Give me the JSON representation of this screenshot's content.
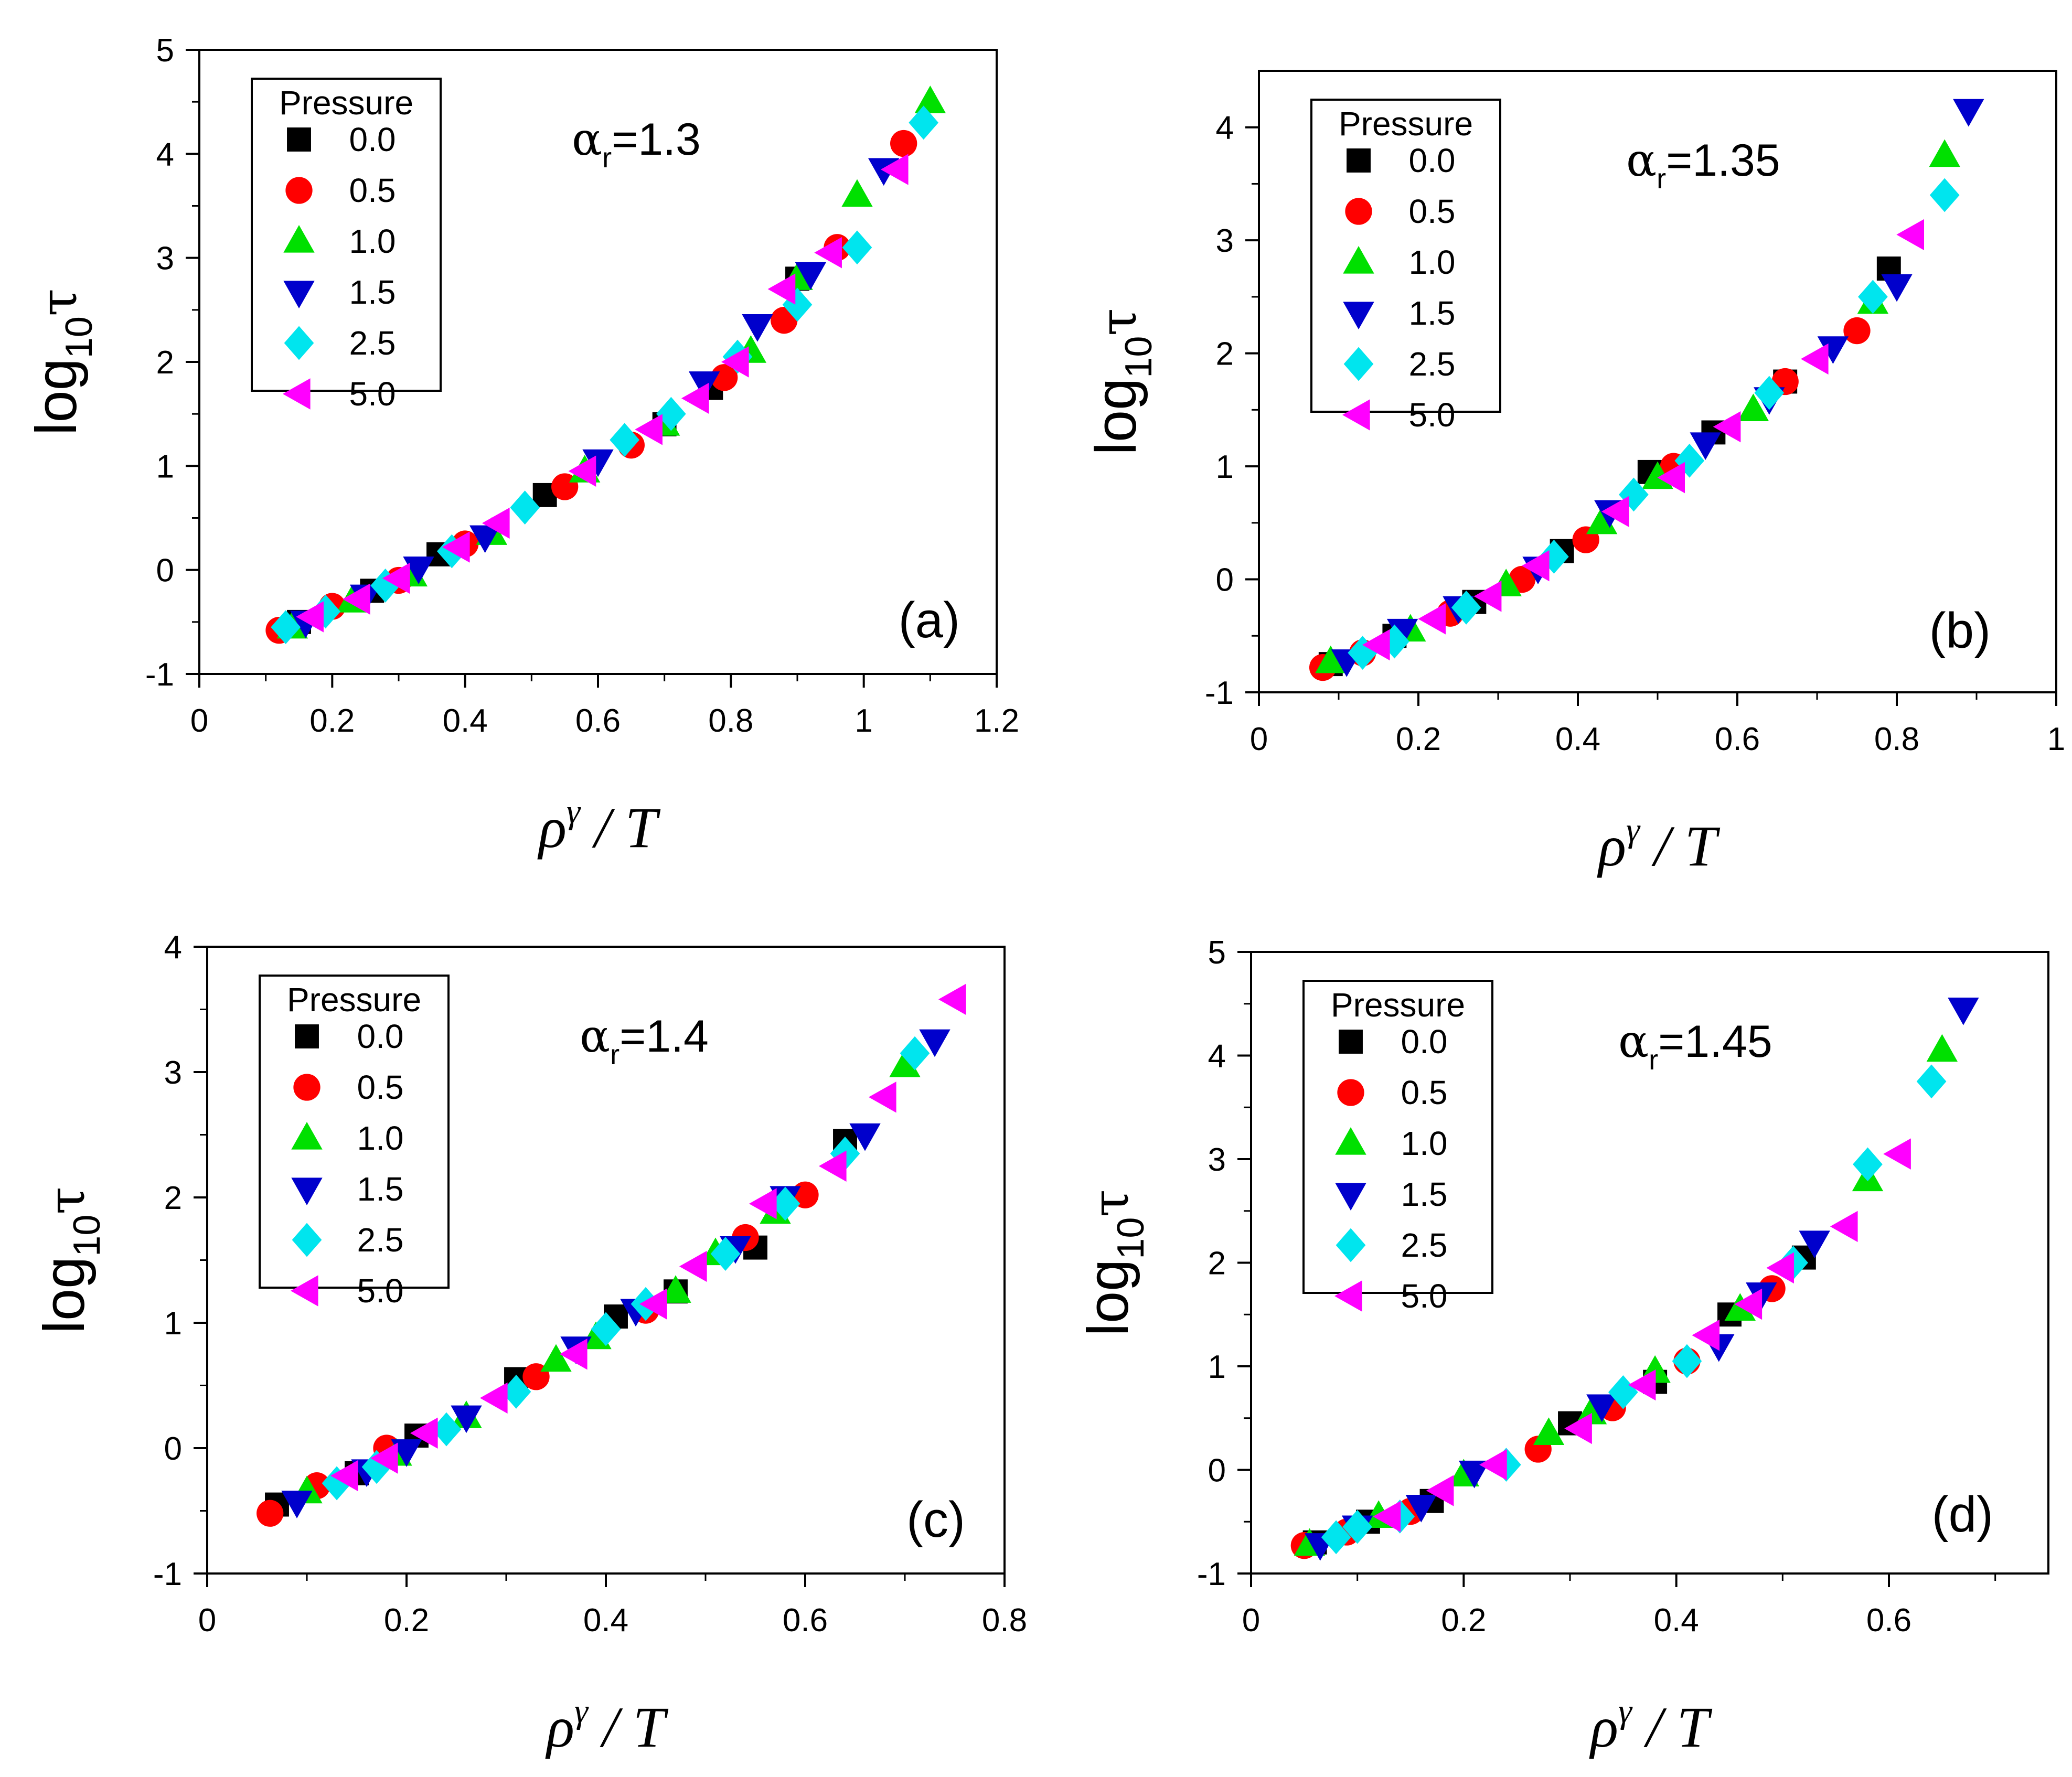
{
  "figure_title": "",
  "chart_data": [
    {
      "type": "scatter",
      "panel_label": "(a)",
      "annotation": {
        "symbol": "α",
        "subscript": "r",
        "value": "=1.3"
      },
      "xlabel": {
        "base": "ρ",
        "sup": "γ",
        "tail": " / T"
      },
      "ylabel": {
        "base": "log",
        "sub": "10",
        "tail": "τ"
      },
      "xlim": [
        0,
        1.2
      ],
      "ylim": [
        -1,
        5
      ],
      "xticks": [
        0,
        0.2,
        0.4,
        0.6,
        0.8,
        1,
        1.2
      ],
      "xtick_labels": [
        "0",
        "0.2",
        "0.4",
        "0.6",
        "0.8",
        "1",
        "1.2"
      ],
      "yticks": [
        -1,
        0,
        1,
        2,
        3,
        4,
        5
      ],
      "ytick_labels": [
        "-1",
        "0",
        "1",
        "2",
        "3",
        "4",
        "5"
      ],
      "legend_title": "Pressure",
      "legend_position": "top-left",
      "series": [
        {
          "name": "0.0",
          "marker": "square",
          "color": "#000000",
          "x": [
            0.15,
            0.26,
            0.36,
            0.52,
            0.7,
            0.77,
            0.9
          ],
          "y": [
            -0.5,
            -0.2,
            0.15,
            0.72,
            1.4,
            1.75,
            2.8
          ]
        },
        {
          "name": "0.5",
          "marker": "circle",
          "color": "#ff0000",
          "x": [
            0.12,
            0.2,
            0.3,
            0.4,
            0.55,
            0.65,
            0.79,
            0.88,
            0.96,
            1.06
          ],
          "y": [
            -0.58,
            -0.35,
            -0.1,
            0.25,
            0.8,
            1.2,
            1.85,
            2.4,
            3.1,
            4.1
          ]
        },
        {
          "name": "1.0",
          "marker": "triangle-up",
          "color": "#00e000",
          "x": [
            0.14,
            0.23,
            0.32,
            0.44,
            0.58,
            0.7,
            0.83,
            0.9,
            0.99,
            1.1
          ],
          "y": [
            -0.55,
            -0.3,
            -0.05,
            0.35,
            0.95,
            1.4,
            2.1,
            2.8,
            3.6,
            4.5
          ]
        },
        {
          "name": "1.5",
          "marker": "triangle-down",
          "color": "#0000cc",
          "x": [
            0.16,
            0.25,
            0.33,
            0.43,
            0.6,
            0.76,
            0.84,
            0.92,
            1.03
          ],
          "y": [
            -0.5,
            -0.25,
            0.02,
            0.32,
            1.05,
            1.8,
            2.35,
            2.85,
            3.85
          ]
        },
        {
          "name": "2.5",
          "marker": "diamond",
          "color": "#00e5ee",
          "x": [
            0.13,
            0.19,
            0.28,
            0.38,
            0.49,
            0.64,
            0.71,
            0.81,
            0.9,
            0.99,
            1.09
          ],
          "y": [
            -0.55,
            -0.4,
            -0.15,
            0.18,
            0.6,
            1.25,
            1.5,
            2.05,
            2.55,
            3.1,
            4.3
          ]
        },
        {
          "name": "5.0",
          "marker": "triangle-left",
          "color": "#ff00ff",
          "x": [
            0.17,
            0.24,
            0.3,
            0.39,
            0.45,
            0.58,
            0.68,
            0.75,
            0.81,
            0.88,
            0.95,
            1.05
          ],
          "y": [
            -0.45,
            -0.28,
            -0.08,
            0.22,
            0.45,
            0.95,
            1.35,
            1.65,
            2.0,
            2.7,
            3.05,
            3.85
          ]
        }
      ]
    },
    {
      "type": "scatter",
      "panel_label": "(b)",
      "annotation": {
        "symbol": "α",
        "subscript": "r",
        "value": "=1.35"
      },
      "xlabel": {
        "base": "ρ",
        "sup": "γ",
        "tail": " / T"
      },
      "ylabel": {
        "base": "log",
        "sub": "10",
        "tail": "τ"
      },
      "xlim": [
        0,
        1
      ],
      "ylim": [
        -1,
        4.5
      ],
      "xticks": [
        0,
        0.2,
        0.4,
        0.6,
        0.8,
        1
      ],
      "xtick_labels": [
        "0",
        "0.2",
        "0.4",
        "0.6",
        "0.8",
        "1"
      ],
      "yticks": [
        -1,
        0,
        1,
        2,
        3,
        4
      ],
      "ytick_labels": [
        "-1",
        "0",
        "1",
        "2",
        "3",
        "4"
      ],
      "legend_title": "Pressure",
      "legend_position": "top-left",
      "series": [
        {
          "name": "0.0",
          "marker": "square",
          "color": "#000000",
          "x": [
            0.09,
            0.17,
            0.27,
            0.38,
            0.49,
            0.57,
            0.66,
            0.79
          ],
          "y": [
            -0.75,
            -0.5,
            -0.2,
            0.25,
            0.95,
            1.3,
            1.75,
            2.75
          ]
        },
        {
          "name": "0.5",
          "marker": "circle",
          "color": "#ff0000",
          "x": [
            0.08,
            0.13,
            0.24,
            0.33,
            0.41,
            0.52,
            0.66,
            0.75
          ],
          "y": [
            -0.78,
            -0.65,
            -0.3,
            0.0,
            0.35,
            1.0,
            1.75,
            2.2
          ]
        },
        {
          "name": "1.0",
          "marker": "triangle-up",
          "color": "#00e000",
          "x": [
            0.09,
            0.19,
            0.31,
            0.43,
            0.5,
            0.62,
            0.77,
            0.86
          ],
          "y": [
            -0.73,
            -0.45,
            -0.05,
            0.5,
            0.9,
            1.5,
            2.45,
            3.75
          ]
        },
        {
          "name": "1.5",
          "marker": "triangle-down",
          "color": "#0000cc",
          "x": [
            0.11,
            0.18,
            0.25,
            0.35,
            0.44,
            0.56,
            0.64,
            0.72,
            0.8,
            0.89
          ],
          "y": [
            -0.72,
            -0.45,
            -0.25,
            0.1,
            0.6,
            1.2,
            1.6,
            2.05,
            2.6,
            4.15
          ]
        },
        {
          "name": "2.5",
          "marker": "diamond",
          "color": "#00e5ee",
          "x": [
            0.13,
            0.17,
            0.26,
            0.37,
            0.47,
            0.54,
            0.64,
            0.77,
            0.86
          ],
          "y": [
            -0.65,
            -0.55,
            -0.25,
            0.2,
            0.75,
            1.05,
            1.65,
            2.5,
            3.4
          ]
        },
        {
          "name": "5.0",
          "marker": "triangle-left",
          "color": "#ff00ff",
          "x": [
            0.15,
            0.22,
            0.29,
            0.35,
            0.45,
            0.52,
            0.59,
            0.7,
            0.82
          ],
          "y": [
            -0.58,
            -0.35,
            -0.15,
            0.12,
            0.6,
            0.9,
            1.35,
            1.95,
            3.05
          ]
        }
      ]
    },
    {
      "type": "scatter",
      "panel_label": "(c)",
      "annotation": {
        "symbol": "α",
        "subscript": "r",
        "value": "=1.4"
      },
      "xlabel": {
        "base": "ρ",
        "sup": "γ",
        "tail": " / T"
      },
      "ylabel": {
        "base": "log",
        "sub": "10",
        "tail": "τ"
      },
      "xlim": [
        0,
        0.8
      ],
      "ylim": [
        -1,
        4
      ],
      "xticks": [
        0,
        0.2,
        0.4,
        0.6,
        0.8
      ],
      "xtick_labels": [
        "0",
        "0.2",
        "0.4",
        "0.6",
        "0.8"
      ],
      "yticks": [
        -1,
        0,
        1,
        2,
        3,
        4
      ],
      "ytick_labels": [
        "-1",
        "0",
        "1",
        "2",
        "3",
        "4"
      ],
      "legend_title": "Pressure",
      "legend_position": "top-left",
      "series": [
        {
          "name": "0.0",
          "marker": "square",
          "color": "#000000",
          "x": [
            0.07,
            0.15,
            0.21,
            0.31,
            0.41,
            0.47,
            0.55,
            0.64
          ],
          "y": [
            -0.45,
            -0.2,
            0.1,
            0.55,
            1.05,
            1.25,
            1.6,
            2.45
          ]
        },
        {
          "name": "0.5",
          "marker": "circle",
          "color": "#ff0000",
          "x": [
            0.063,
            0.11,
            0.18,
            0.33,
            0.44,
            0.54,
            0.6
          ],
          "y": [
            -0.52,
            -0.3,
            0.0,
            0.57,
            1.1,
            1.68,
            2.02
          ]
        },
        {
          "name": "1.0",
          "marker": "triangle-up",
          "color": "#00e000",
          "x": [
            0.1,
            0.19,
            0.26,
            0.35,
            0.39,
            0.47,
            0.51,
            0.57,
            0.7
          ],
          "y": [
            -0.35,
            -0.05,
            0.25,
            0.7,
            0.88,
            1.25,
            1.55,
            1.88,
            3.05
          ]
        },
        {
          "name": "1.5",
          "marker": "triangle-down",
          "color": "#0000cc",
          "x": [
            0.09,
            0.16,
            0.2,
            0.26,
            0.37,
            0.43,
            0.53,
            0.58,
            0.66,
            0.73
          ],
          "y": [
            -0.43,
            -0.18,
            -0.02,
            0.25,
            0.8,
            1.1,
            1.6,
            2.0,
            2.5,
            3.25
          ]
        },
        {
          "name": "2.5",
          "marker": "diamond",
          "color": "#00e5ee",
          "x": [
            0.13,
            0.17,
            0.24,
            0.31,
            0.4,
            0.44,
            0.52,
            0.58,
            0.64,
            0.71
          ],
          "y": [
            -0.28,
            -0.15,
            0.15,
            0.45,
            0.95,
            1.15,
            1.55,
            1.95,
            2.35,
            3.15
          ]
        },
        {
          "name": "5.0",
          "marker": "triangle-left",
          "color": "#ff00ff",
          "x": [
            0.14,
            0.18,
            0.22,
            0.29,
            0.37,
            0.45,
            0.49,
            0.56,
            0.63,
            0.68,
            0.75
          ],
          "y": [
            -0.22,
            -0.08,
            0.12,
            0.4,
            0.75,
            1.15,
            1.45,
            1.95,
            2.25,
            2.8,
            3.58
          ]
        }
      ]
    },
    {
      "type": "scatter",
      "panel_label": "(d)",
      "annotation": {
        "symbol": "α",
        "subscript": "r",
        "value": "=1.45"
      },
      "xlabel": {
        "base": "ρ",
        "sup": "γ",
        "tail": " / T"
      },
      "ylabel": {
        "base": "log",
        "sub": "10",
        "tail": "τ"
      },
      "xlim": [
        0,
        0.75
      ],
      "ylim": [
        -1,
        5
      ],
      "xticks": [
        0,
        0.2,
        0.4,
        0.6
      ],
      "xtick_labels": [
        "0",
        "0.2",
        "0.4",
        "0.6"
      ],
      "yticks": [
        -1,
        0,
        1,
        2,
        3,
        4,
        5
      ],
      "ytick_labels": [
        "-1",
        "0",
        "1",
        "2",
        "3",
        "4",
        "5"
      ],
      "legend_title": "Pressure",
      "legend_position": "top-left",
      "series": [
        {
          "name": "0.0",
          "marker": "square",
          "color": "#000000",
          "x": [
            0.06,
            0.11,
            0.17,
            0.3,
            0.38,
            0.45,
            0.52
          ],
          "y": [
            -0.7,
            -0.5,
            -0.3,
            0.45,
            0.85,
            1.5,
            2.05
          ]
        },
        {
          "name": "0.5",
          "marker": "circle",
          "color": "#ff0000",
          "x": [
            0.05,
            0.09,
            0.15,
            0.27,
            0.34,
            0.41,
            0.49
          ],
          "y": [
            -0.73,
            -0.6,
            -0.4,
            0.2,
            0.6,
            1.05,
            1.75
          ]
        },
        {
          "name": "1.0",
          "marker": "triangle-up",
          "color": "#00e000",
          "x": [
            0.055,
            0.12,
            0.2,
            0.28,
            0.32,
            0.38,
            0.46,
            0.58,
            0.65
          ],
          "y": [
            -0.72,
            -0.45,
            -0.05,
            0.35,
            0.55,
            0.95,
            1.55,
            2.8,
            4.05
          ]
        },
        {
          "name": "1.5",
          "marker": "triangle-down",
          "color": "#0000cc",
          "x": [
            0.065,
            0.1,
            0.16,
            0.21,
            0.33,
            0.44,
            0.48,
            0.53,
            0.67
          ],
          "y": [
            -0.72,
            -0.55,
            -0.35,
            -0.02,
            0.62,
            1.2,
            1.7,
            2.2,
            4.45
          ]
        },
        {
          "name": "2.5",
          "marker": "diamond",
          "color": "#00e5ee",
          "x": [
            0.08,
            0.1,
            0.14,
            0.24,
            0.35,
            0.41,
            0.51,
            0.58,
            0.64
          ],
          "y": [
            -0.65,
            -0.55,
            -0.45,
            0.05,
            0.75,
            1.05,
            2.0,
            2.95,
            3.75
          ]
        },
        {
          "name": "5.0",
          "marker": "triangle-left",
          "color": "#ff00ff",
          "x": [
            0.13,
            0.18,
            0.23,
            0.31,
            0.37,
            0.43,
            0.47,
            0.5,
            0.56,
            0.61
          ],
          "y": [
            -0.45,
            -0.2,
            0.05,
            0.4,
            0.82,
            1.3,
            1.6,
            1.95,
            2.35,
            3.05
          ]
        }
      ]
    }
  ]
}
